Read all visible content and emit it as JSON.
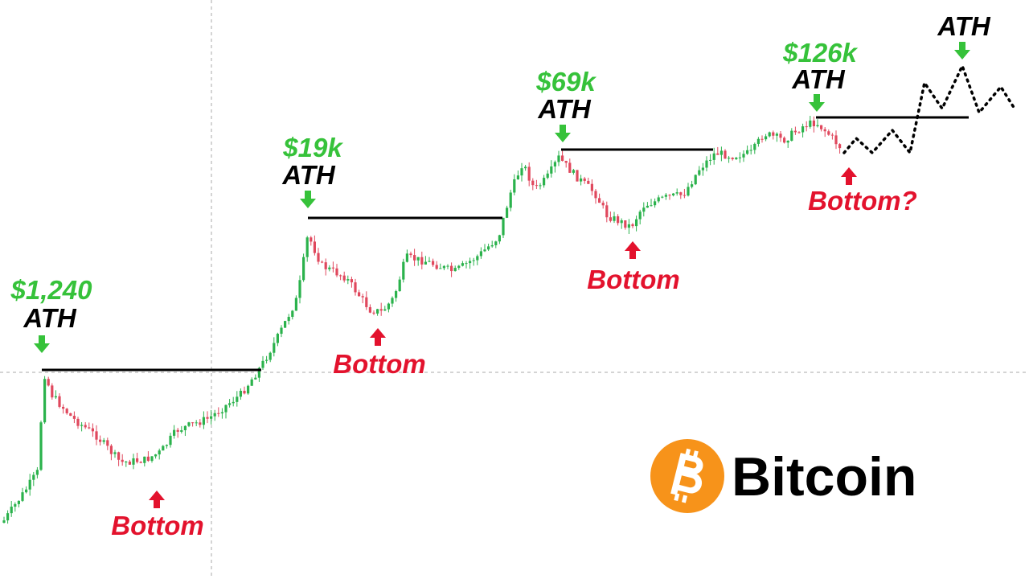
{
  "annotations": {
    "a1": {
      "price": "$1,240",
      "label": "ATH",
      "bottom": "Bottom"
    },
    "a2": {
      "price": "$19k",
      "label": "ATH",
      "bottom": "Bottom"
    },
    "a3": {
      "price": "$69k",
      "label": "ATH",
      "bottom": "Bottom"
    },
    "a4": {
      "price": "$126k",
      "label": "ATH",
      "bottom": "Bottom?"
    },
    "future": {
      "label": "ATH"
    }
  },
  "logo": {
    "text": "Bitcoin"
  }
}
